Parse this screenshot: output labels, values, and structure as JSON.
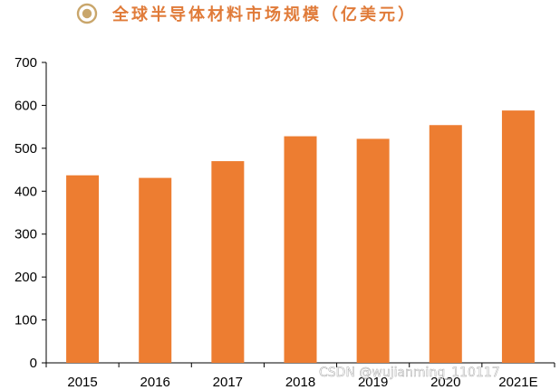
{
  "title": "全球半导体材料市场规模（亿美元）",
  "colors": {
    "bar": "#ED7D31",
    "title": "#E07B39",
    "axis": "#000000",
    "icon": "#C9A66B"
  },
  "watermark": "CSDN @wujianming_110117",
  "chart_data": {
    "type": "bar",
    "categories": [
      "2015",
      "2016",
      "2017",
      "2018",
      "2019",
      "2020",
      "2021E"
    ],
    "values": [
      437,
      431,
      470,
      528,
      522,
      554,
      588
    ],
    "ylim": [
      0,
      700
    ],
    "yticks": [
      0,
      100,
      200,
      300,
      400,
      500,
      600,
      700
    ],
    "grid": false,
    "legend": "none"
  }
}
